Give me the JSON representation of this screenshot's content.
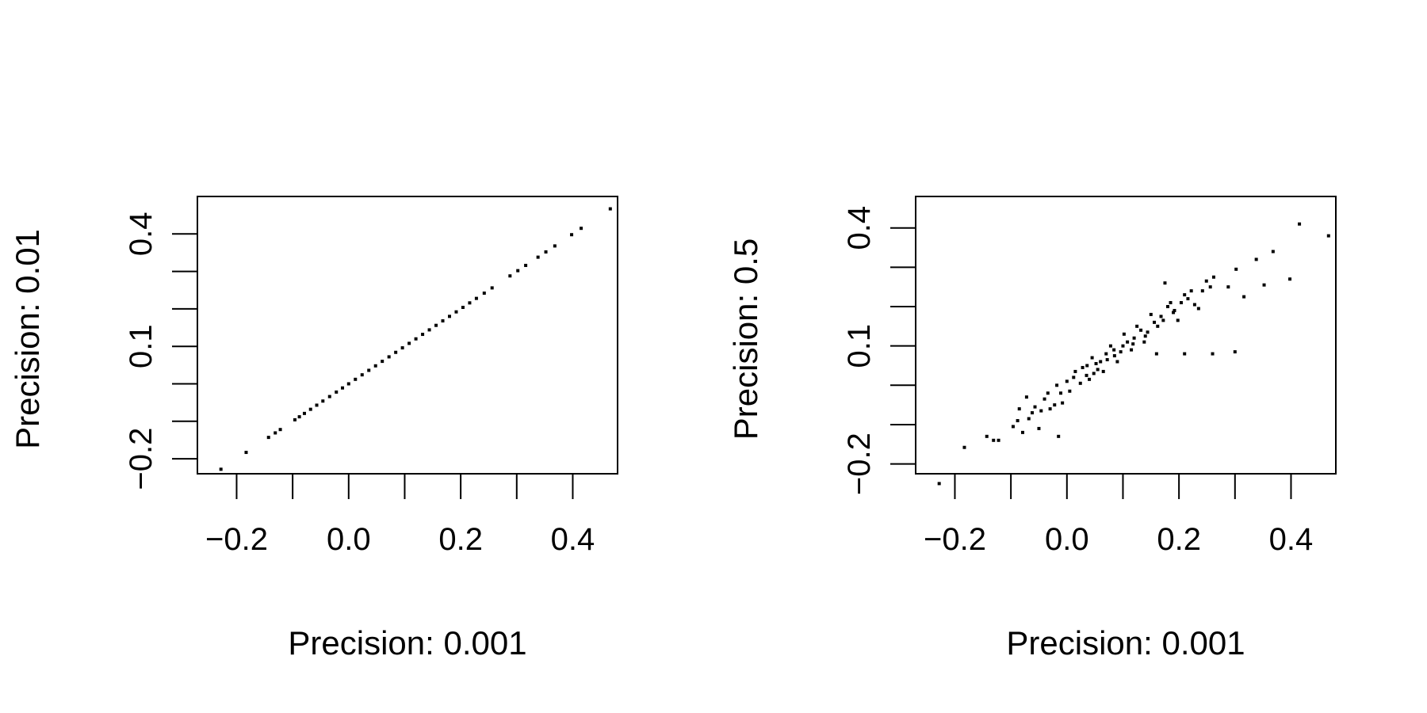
{
  "chart_data": [
    {
      "type": "scatter",
      "xlabel": "Precision: 0.001",
      "ylabel": "Precision: 0.01",
      "xlim": [
        -0.27,
        0.48
      ],
      "ylim": [
        -0.24,
        0.5
      ],
      "x_ticks": [
        -0.2,
        -0.1,
        0.0,
        0.1,
        0.2,
        0.3,
        0.4
      ],
      "x_tick_labels": [
        "-0.2",
        "",
        "0.0",
        "",
        "0.2",
        "",
        "0.4"
      ],
      "y_ticks": [
        -0.2,
        -0.1,
        0.0,
        0.1,
        0.2,
        0.3,
        0.4
      ],
      "y_tick_labels": [
        "-0.2",
        "",
        "",
        "0.1",
        "",
        "",
        "0.4"
      ],
      "points": [
        [
          -0.228,
          -0.228
        ],
        [
          -0.183,
          -0.183
        ],
        [
          -0.143,
          -0.143
        ],
        [
          -0.131,
          -0.131
        ],
        [
          -0.122,
          -0.122
        ],
        [
          -0.096,
          -0.096
        ],
        [
          -0.088,
          -0.088
        ],
        [
          -0.079,
          -0.079
        ],
        [
          -0.068,
          -0.068
        ],
        [
          -0.057,
          -0.057
        ],
        [
          -0.046,
          -0.046
        ],
        [
          -0.034,
          -0.034
        ],
        [
          -0.022,
          -0.022
        ],
        [
          -0.011,
          -0.011
        ],
        [
          0.0,
          0.0
        ],
        [
          0.012,
          0.012
        ],
        [
          0.024,
          0.024
        ],
        [
          0.036,
          0.036
        ],
        [
          0.048,
          0.048
        ],
        [
          0.06,
          0.06
        ],
        [
          0.072,
          0.072
        ],
        [
          0.084,
          0.084
        ],
        [
          0.096,
          0.096
        ],
        [
          0.108,
          0.108
        ],
        [
          0.12,
          0.12
        ],
        [
          0.132,
          0.132
        ],
        [
          0.144,
          0.144
        ],
        [
          0.156,
          0.156
        ],
        [
          0.168,
          0.168
        ],
        [
          0.18,
          0.18
        ],
        [
          0.192,
          0.192
        ],
        [
          0.204,
          0.204
        ],
        [
          0.216,
          0.216
        ],
        [
          0.228,
          0.228
        ],
        [
          0.242,
          0.242
        ],
        [
          0.256,
          0.256
        ],
        [
          0.288,
          0.288
        ],
        [
          0.302,
          0.302
        ],
        [
          0.316,
          0.316
        ],
        [
          0.338,
          0.338
        ],
        [
          0.352,
          0.352
        ],
        [
          0.368,
          0.368
        ],
        [
          0.398,
          0.398
        ],
        [
          0.415,
          0.415
        ],
        [
          0.467,
          0.467
        ]
      ]
    },
    {
      "type": "scatter",
      "xlabel": "Precision: 0.001",
      "ylabel": "Precision: 0.5",
      "xlim": [
        -0.27,
        0.48
      ],
      "ylim": [
        -0.225,
        0.48
      ],
      "x_ticks": [
        -0.2,
        -0.1,
        0.0,
        0.1,
        0.2,
        0.3,
        0.4
      ],
      "x_tick_labels": [
        "-0.2",
        "",
        "0.0",
        "",
        "0.2",
        "",
        "0.4"
      ],
      "y_ticks": [
        -0.2,
        -0.1,
        0.0,
        0.1,
        0.2,
        0.3,
        0.4
      ],
      "y_tick_labels": [
        "-0.2",
        "",
        "",
        "0.1",
        "",
        "",
        "0.4"
      ],
      "points": [
        [
          -0.228,
          -0.25
        ],
        [
          -0.183,
          -0.158
        ],
        [
          -0.143,
          -0.13
        ],
        [
          -0.131,
          -0.14
        ],
        [
          -0.122,
          -0.14
        ],
        [
          -0.096,
          -0.105
        ],
        [
          -0.088,
          -0.09
        ],
        [
          -0.079,
          -0.12
        ],
        [
          -0.068,
          -0.085
        ],
        [
          -0.057,
          -0.055
        ],
        [
          -0.046,
          -0.065
        ],
        [
          -0.034,
          -0.02
        ],
        [
          -0.022,
          -0.05
        ],
        [
          -0.011,
          -0.02
        ],
        [
          0.0,
          0.01
        ],
        [
          0.012,
          0.02
        ],
        [
          0.024,
          0.005
        ],
        [
          0.036,
          0.05
        ],
        [
          0.048,
          0.03
        ],
        [
          0.06,
          0.06
        ],
        [
          0.072,
          0.065
        ],
        [
          0.084,
          0.09
        ],
        [
          0.096,
          0.085
        ],
        [
          0.108,
          0.11
        ],
        [
          0.12,
          0.12
        ],
        [
          0.132,
          0.14
        ],
        [
          0.144,
          0.135
        ],
        [
          0.156,
          0.16
        ],
        [
          0.168,
          0.175
        ],
        [
          0.18,
          0.2
        ],
        [
          0.192,
          0.19
        ],
        [
          0.204,
          0.21
        ],
        [
          0.216,
          0.22
        ],
        [
          0.228,
          0.205
        ],
        [
          0.242,
          0.24
        ],
        [
          0.256,
          0.25
        ],
        [
          0.288,
          0.25
        ],
        [
          0.302,
          0.295
        ],
        [
          0.316,
          0.225
        ],
        [
          0.338,
          0.32
        ],
        [
          0.352,
          0.255
        ],
        [
          0.368,
          0.34
        ],
        [
          0.398,
          0.27
        ],
        [
          0.415,
          0.41
        ],
        [
          0.467,
          0.38
        ],
        [
          -0.085,
          -0.06
        ],
        [
          -0.072,
          -0.03
        ],
        [
          -0.062,
          -0.07
        ],
        [
          -0.05,
          -0.11
        ],
        [
          -0.04,
          -0.035
        ],
        [
          -0.03,
          -0.06
        ],
        [
          -0.018,
          0.0
        ],
        [
          -0.008,
          -0.045
        ],
        [
          0.005,
          -0.015
        ],
        [
          0.015,
          0.035
        ],
        [
          0.028,
          0.045
        ],
        [
          0.04,
          0.015
        ],
        [
          0.052,
          0.055
        ],
        [
          0.065,
          0.035
        ],
        [
          0.078,
          0.1
        ],
        [
          0.09,
          0.06
        ],
        [
          0.102,
          0.13
        ],
        [
          0.115,
          0.09
        ],
        [
          0.125,
          0.15
        ],
        [
          0.138,
          0.11
        ],
        [
          0.15,
          0.18
        ],
        [
          0.162,
          0.15
        ],
        [
          0.175,
          0.26
        ],
        [
          0.185,
          0.21
        ],
        [
          0.198,
          0.165
        ],
        [
          0.21,
          0.23
        ],
        [
          0.222,
          0.24
        ],
        [
          0.235,
          0.195
        ],
        [
          0.249,
          0.265
        ],
        [
          0.262,
          0.275
        ],
        [
          0.16,
          0.08
        ],
        [
          0.21,
          0.08
        ],
        [
          0.26,
          0.08
        ],
        [
          0.3,
          0.085
        ],
        [
          -0.015,
          -0.13
        ],
        [
          0.045,
          0.07
        ],
        [
          0.07,
          0.08
        ],
        [
          0.1,
          0.1
        ],
        [
          0.14,
          0.125
        ],
        [
          0.19,
          0.185
        ],
        [
          0.035,
          0.025
        ],
        [
          0.055,
          0.04
        ],
        [
          0.085,
          0.075
        ],
        [
          0.118,
          0.105
        ],
        [
          0.172,
          0.165
        ]
      ]
    }
  ]
}
